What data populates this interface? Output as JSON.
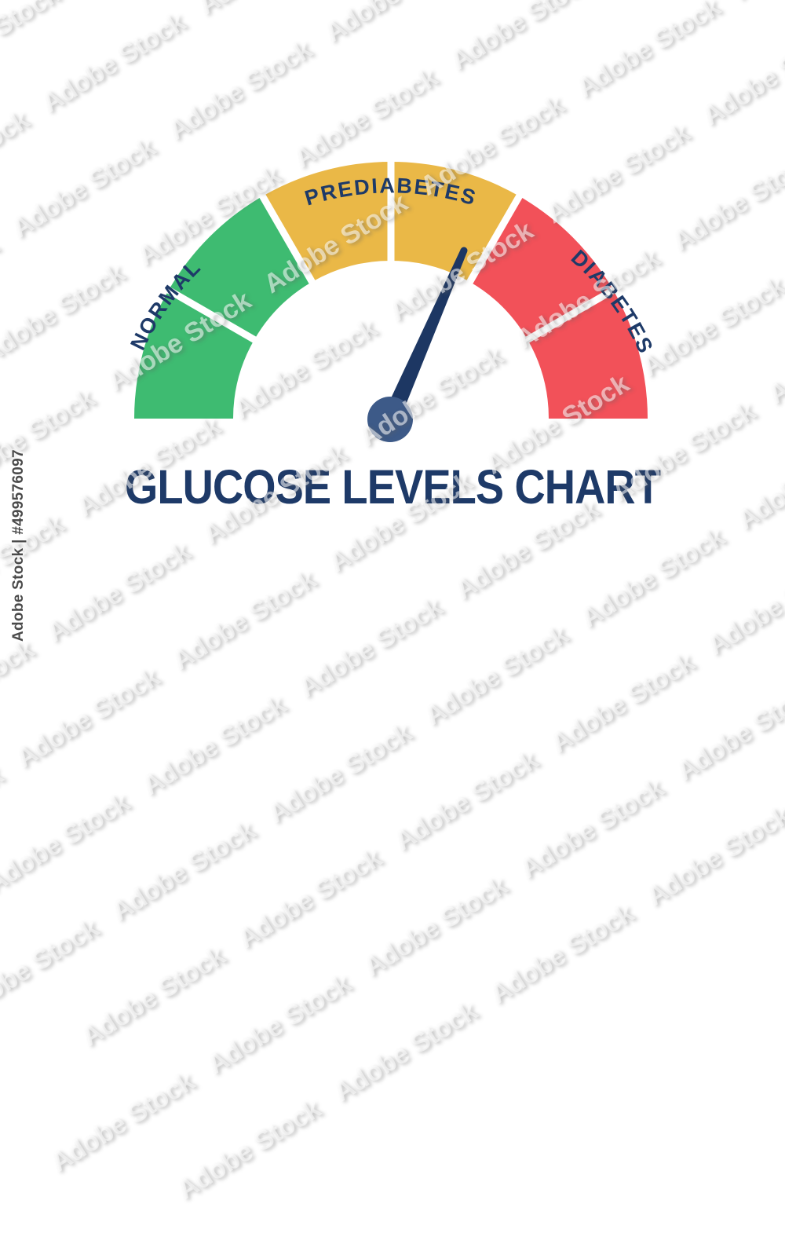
{
  "title": "GLUCOSE LEVELS CHART",
  "gauge": {
    "labels": {
      "normal": "NORMAL",
      "prediabetes": "PREDIABETES",
      "diabetes": "DIABETES"
    },
    "segments": [
      {
        "zone": "normal",
        "color": "#3EBB71"
      },
      {
        "zone": "normal",
        "color": "#3EBB71"
      },
      {
        "zone": "prediabetes",
        "color": "#EAB847"
      },
      {
        "zone": "prediabetes",
        "color": "#EAB847"
      },
      {
        "zone": "diabetes",
        "color": "#F25159"
      },
      {
        "zone": "diabetes",
        "color": "#F25159"
      }
    ],
    "needle_color": "#1D3763",
    "hub_color": "#3D5A88",
    "label_color": "#1E3A68"
  },
  "watermark": {
    "tile_text": "Adobe Stock",
    "credit_text": "Adobe Stock | #499576097"
  },
  "chart_data": {
    "type": "gauge",
    "title": "GLUCOSE LEVELS CHART",
    "zones": [
      {
        "label": "NORMAL",
        "color": "#3EBB71",
        "segments": 2,
        "sweep_deg": [
          0,
          60
        ]
      },
      {
        "label": "PREDIABETES",
        "color": "#EAB847",
        "segments": 2,
        "sweep_deg": [
          60,
          120
        ]
      },
      {
        "label": "DIABETES",
        "color": "#F25159",
        "segments": 2,
        "sweep_deg": [
          120,
          180
        ]
      }
    ],
    "total_sweep_deg": 180,
    "needle": {
      "position_deg_from_left": 113.5,
      "pointing_zone": "PREDIABETES",
      "near_boundary_with": "DIABETES"
    },
    "numeric_scale_shown": false
  }
}
